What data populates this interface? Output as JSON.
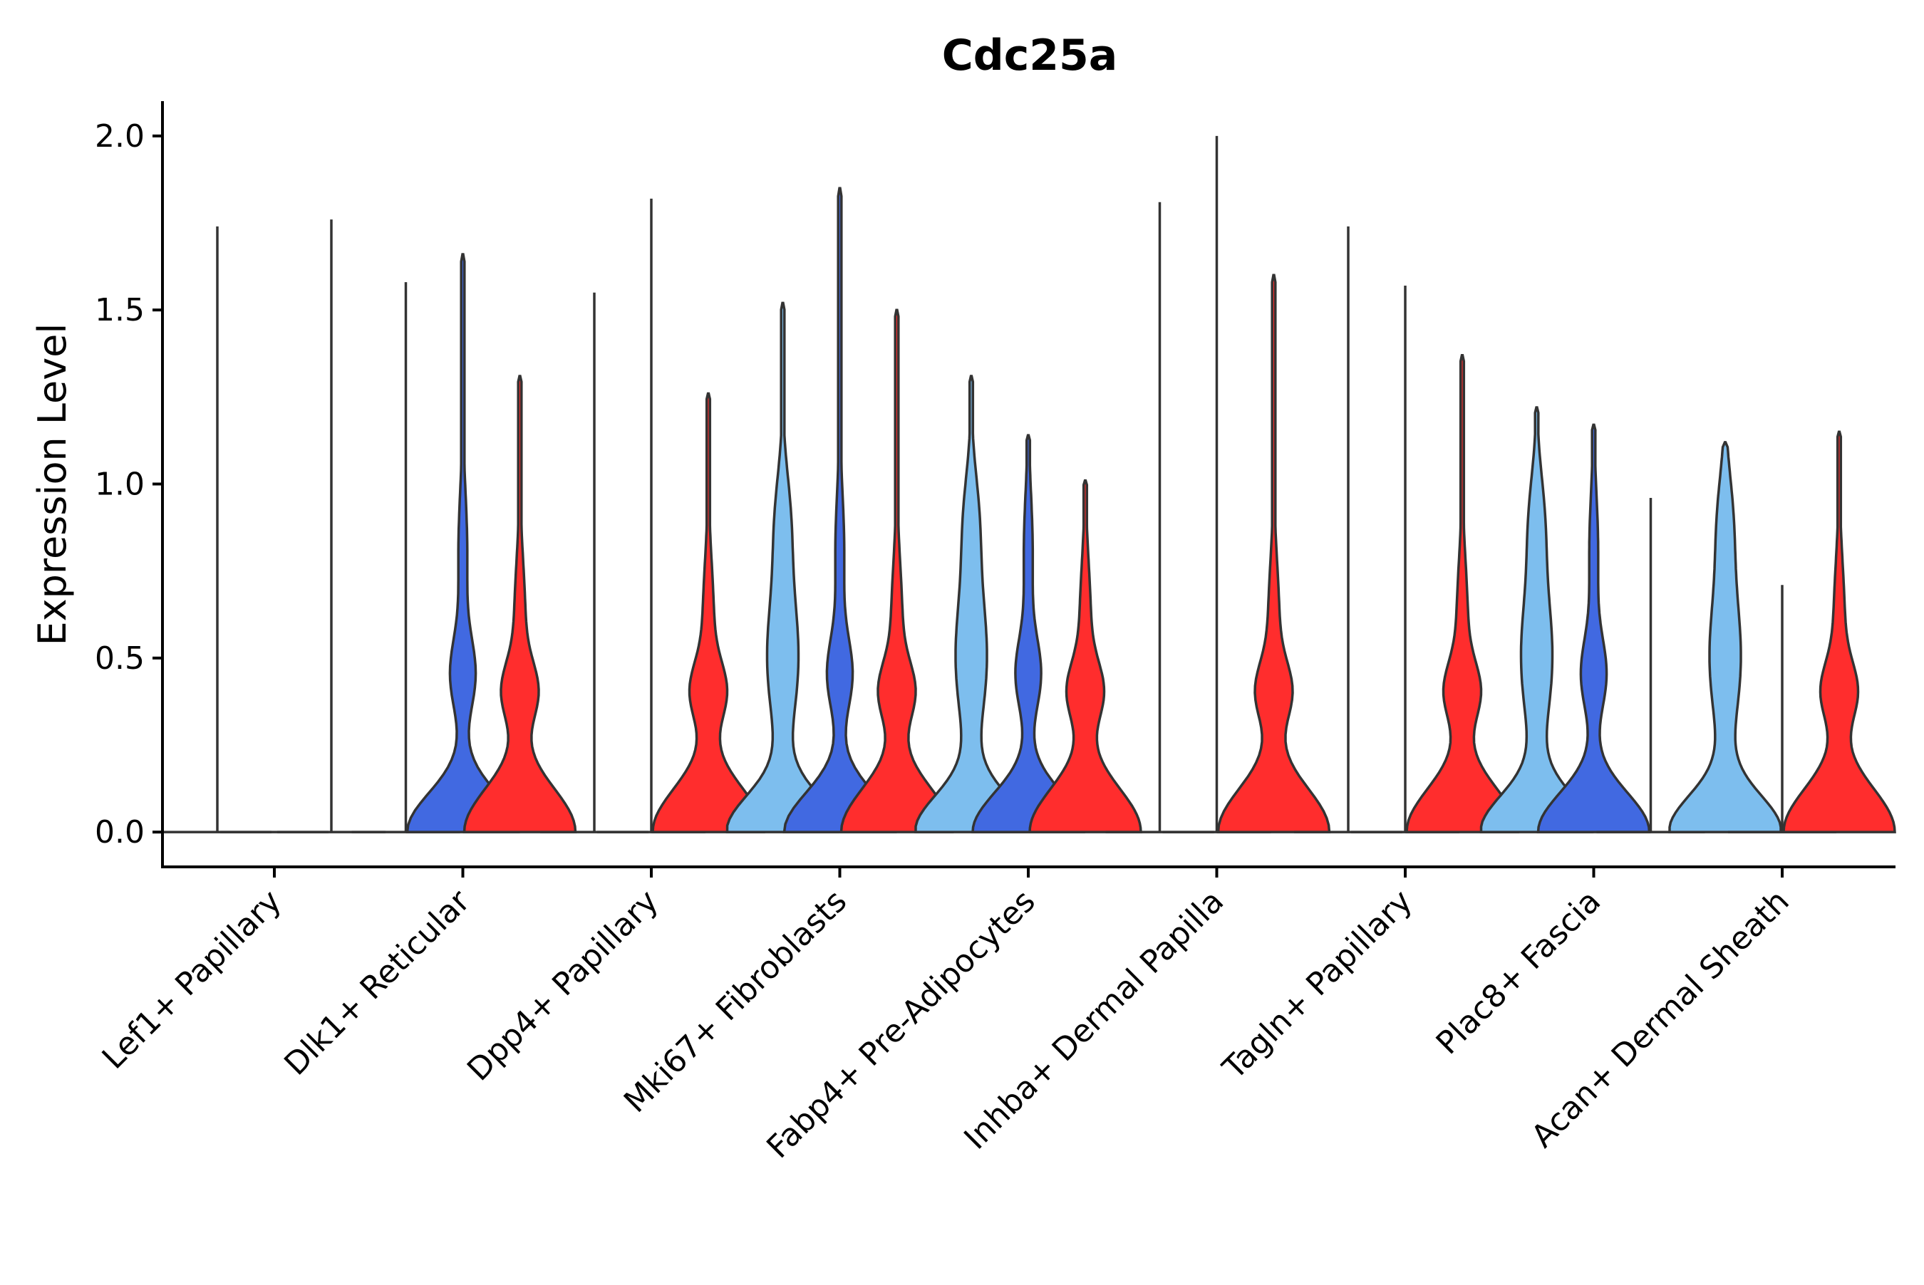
{
  "chart_data": {
    "type": "violin",
    "title": "Cdc25a",
    "xlabel": "",
    "ylabel": "Expression Level",
    "ylim": [
      -0.1,
      2.1
    ],
    "yticks": [
      0.0,
      0.5,
      1.0,
      1.5,
      2.0
    ],
    "ytick_labels": [
      "0.0",
      "0.5",
      "1.0",
      "1.5",
      "2.0"
    ],
    "categories": [
      "Lef1+ Papillary",
      "Dlk1+ Reticular",
      "Dpp4+ Papillary",
      "Mki67+ Fibroblasts",
      "Fabp4+ Pre-Adipocytes",
      "Inhba+ Dermal Papilla",
      "Tagln+ Papillary",
      "Plac8+ Fascia",
      "Acan+ Dermal Sheath"
    ],
    "series_colors": [
      "#7dbeee",
      "#4169e1",
      "#ff2d2d"
    ],
    "violins": [
      [
        {
          "max": 1.74,
          "shape": "spike"
        },
        {
          "max": 0.0,
          "shape": "spike"
        },
        {
          "max": 1.76,
          "shape": "spike"
        }
      ],
      [
        {
          "max": 1.58,
          "shape": "spike"
        },
        {
          "max": 1.66,
          "shape": "blue"
        },
        {
          "max": 1.31,
          "shape": "red"
        }
      ],
      [
        {
          "max": 1.55,
          "shape": "spike"
        },
        {
          "max": 1.82,
          "shape": "spike"
        },
        {
          "max": 1.26,
          "shape": "red"
        }
      ],
      [
        {
          "max": 1.52,
          "shape": "light"
        },
        {
          "max": 1.85,
          "shape": "blue"
        },
        {
          "max": 1.5,
          "shape": "red"
        }
      ],
      [
        {
          "max": 1.31,
          "shape": "light"
        },
        {
          "max": 1.14,
          "shape": "blue"
        },
        {
          "max": 1.01,
          "shape": "red"
        }
      ],
      [
        {
          "max": 1.81,
          "shape": "spike"
        },
        {
          "max": 2.0,
          "shape": "spike"
        },
        {
          "max": 1.6,
          "shape": "red"
        }
      ],
      [
        {
          "max": 1.74,
          "shape": "spike"
        },
        {
          "max": 1.57,
          "shape": "spike"
        },
        {
          "max": 1.37,
          "shape": "red"
        }
      ],
      [
        {
          "max": 1.22,
          "shape": "light"
        },
        {
          "max": 1.17,
          "shape": "blue"
        },
        {
          "max": 0.96,
          "shape": "spike"
        }
      ],
      [
        {
          "max": 1.12,
          "shape": "light"
        },
        {
          "max": 0.71,
          "shape": "spike"
        },
        {
          "max": 1.15,
          "shape": "red"
        }
      ]
    ]
  }
}
